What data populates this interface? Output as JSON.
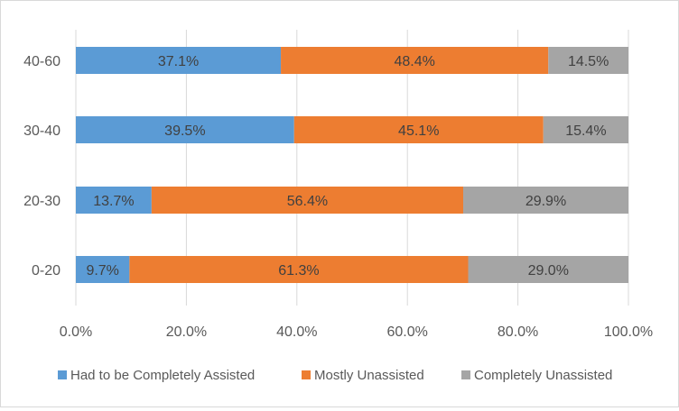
{
  "chart_data": {
    "type": "bar",
    "orientation": "horizontal",
    "stacked": "percent",
    "categories": [
      "40-60",
      "30-40",
      "20-30",
      "0-20"
    ],
    "series": [
      {
        "name": "Had to be Completely Assisted",
        "color": "#5b9bd5",
        "values": [
          37.1,
          39.5,
          13.7,
          9.7
        ],
        "labels": [
          "37.1%",
          "39.5%",
          "13.7%",
          "9.7%"
        ]
      },
      {
        "name": "Mostly Unassisted",
        "color": "#ed7d31",
        "values": [
          48.4,
          45.1,
          56.4,
          61.3
        ],
        "labels": [
          "48.4%",
          "45.1%",
          "56.4%",
          "61.3%"
        ]
      },
      {
        "name": "Completely Unassisted",
        "color": "#a5a5a5",
        "values": [
          14.5,
          15.4,
          29.9,
          29.0
        ],
        "labels": [
          "14.5%",
          "15.4%",
          "29.9%",
          "29.0%"
        ]
      }
    ],
    "x_ticks": [
      "0.0%",
      "20.0%",
      "40.0%",
      "60.0%",
      "80.0%",
      "100.0%"
    ],
    "xlim": [
      0,
      100
    ],
    "grid": "vertical",
    "legend_position": "bottom"
  }
}
